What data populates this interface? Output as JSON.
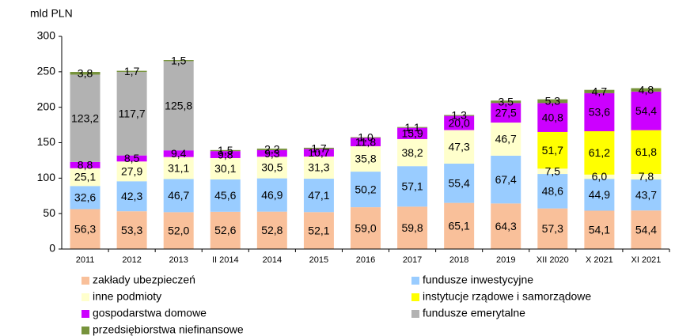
{
  "chart_data": {
    "type": "stacked_bar",
    "y_axis_label": "mld PLN",
    "categories": [
      "2011",
      "2012",
      "2013",
      "II 2014",
      "2014",
      "2015",
      "2016",
      "2017",
      "2018",
      "2019",
      "XII 2020",
      "X 2021",
      "XI 2021"
    ],
    "ylim": [
      0,
      300
    ],
    "yticks": [
      0,
      50,
      100,
      150,
      200,
      250,
      300
    ],
    "series": [
      {
        "name": "zakłady ubezpieczeń",
        "color": "#f9c09a",
        "values": [
          56.3,
          53.3,
          52.0,
          52.6,
          52.8,
          52.1,
          59.0,
          59.8,
          65.1,
          64.3,
          57.3,
          54.1,
          54.4
        ],
        "value_labels": [
          "56,3",
          "53,3",
          "52,0",
          "52,6",
          "52,8",
          "52,1",
          "59,0",
          "59,8",
          "65,1",
          "64,3",
          "57,3",
          "54,1",
          "54,4"
        ]
      },
      {
        "name": "fundusze inwestycyjne",
        "color": "#99ccff",
        "values": [
          32.6,
          42.3,
          46.7,
          45.6,
          46.9,
          47.1,
          50.2,
          57.1,
          55.4,
          67.4,
          48.6,
          44.9,
          43.7
        ],
        "value_labels": [
          "32,6",
          "42,3",
          "46,7",
          "45,6",
          "46,9",
          "47,1",
          "50,2",
          "57,1",
          "55,4",
          "67,4",
          "48,6",
          "44,9",
          "43,7"
        ]
      },
      {
        "name": "inne podmioty",
        "color": "#ffffcc",
        "values": [
          25.1,
          27.9,
          31.1,
          30.1,
          30.5,
          31.3,
          35.8,
          38.2,
          47.3,
          46.7,
          7.5,
          6.0,
          7.8
        ],
        "value_labels": [
          "25,1",
          "27,9",
          "31,1",
          "30,1",
          "30,5",
          "31,3",
          "35,8",
          "38,2",
          "47,3",
          "46,7",
          "7,5",
          "6,0",
          "7,8"
        ]
      },
      {
        "name": "instytucje rządowe i samorządowe",
        "color": "#ffff00",
        "values": [
          null,
          null,
          null,
          null,
          null,
          null,
          null,
          null,
          null,
          null,
          51.7,
          61.2,
          61.8
        ],
        "value_labels": [
          null,
          null,
          null,
          null,
          null,
          null,
          null,
          null,
          null,
          null,
          "51,7",
          "61,2",
          "61,8"
        ]
      },
      {
        "name": "gospodarstwa domowe",
        "color": "#cc00ff",
        "values": [
          8.8,
          8.5,
          9.4,
          9.8,
          9.3,
          10.7,
          11.8,
          15.9,
          20.0,
          27.5,
          40.8,
          53.6,
          54.4
        ],
        "value_labels": [
          "8,8",
          "8,5",
          "9,4",
          "9,8",
          "9,3",
          "10,7",
          "11,8",
          "15,9",
          "20,0",
          "27,5",
          "40,8",
          "53,6",
          "54,4"
        ]
      },
      {
        "name": "fundusze emerytalne",
        "color": "#b2b2b2",
        "values": [
          123.2,
          117.7,
          125.8,
          null,
          null,
          null,
          null,
          null,
          null,
          null,
          null,
          null,
          null
        ],
        "value_labels": [
          "123,2",
          "117,7",
          "125,8",
          null,
          null,
          null,
          null,
          null,
          null,
          null,
          null,
          null,
          null
        ]
      },
      {
        "name": "przedsiębiorstwa niefinansowe",
        "color": "#77933c",
        "values": [
          3.8,
          1.7,
          1.5,
          1.5,
          2.2,
          1.7,
          1.0,
          1.1,
          1.3,
          3.5,
          5.3,
          4.7,
          4.8
        ],
        "value_labels": [
          "3,8",
          "1,7",
          "1,5",
          "1,5",
          "2,2",
          "1,7",
          "1,0",
          "1,1",
          "1,3",
          "3,5",
          "5,3",
          "4,7",
          "4,8"
        ]
      }
    ]
  }
}
